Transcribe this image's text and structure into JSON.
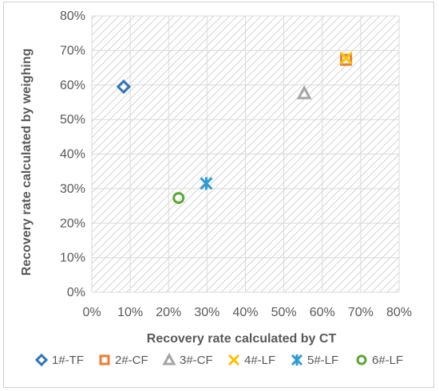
{
  "chart_data": {
    "type": "scatter",
    "title": "",
    "xlabel": "Recovery rate calculated by CT",
    "ylabel": "Recovery rate calculated by  weighing",
    "xlim": [
      0,
      80
    ],
    "ylim": [
      0,
      80
    ],
    "x_ticks": [
      "0%",
      "10%",
      "20%",
      "30%",
      "40%",
      "50%",
      "60%",
      "70%",
      "80%"
    ],
    "y_ticks": [
      "0%",
      "10%",
      "20%",
      "30%",
      "40%",
      "50%",
      "60%",
      "70%",
      "80%"
    ],
    "grid": true,
    "plot_background": "diagonal hatch",
    "legend_position": "bottom",
    "series": [
      {
        "name": "1#-TF",
        "marker": "diamond",
        "color": "#2e75b6",
        "points": [
          {
            "x": 8.3,
            "y": 59.5
          }
        ]
      },
      {
        "name": "2#-CF",
        "marker": "square",
        "color": "#ed7d31",
        "points": [
          {
            "x": 66.2,
            "y": 67.3
          }
        ]
      },
      {
        "name": "3#-CF",
        "marker": "triangle",
        "color": "#a5a5a5",
        "points": [
          {
            "x": 55.3,
            "y": 57.6
          }
        ]
      },
      {
        "name": "4#-LF",
        "marker": "x",
        "color": "#ffc000",
        "points": [
          {
            "x": 66.2,
            "y": 67.8
          }
        ]
      },
      {
        "name": "5#-LF",
        "marker": "asterisk",
        "color": "#2e9bd6",
        "points": [
          {
            "x": 29.8,
            "y": 31.5
          }
        ]
      },
      {
        "name": "6#-LF",
        "marker": "circle",
        "color": "#5aa832",
        "points": [
          {
            "x": 22.6,
            "y": 27.3
          }
        ]
      }
    ]
  }
}
